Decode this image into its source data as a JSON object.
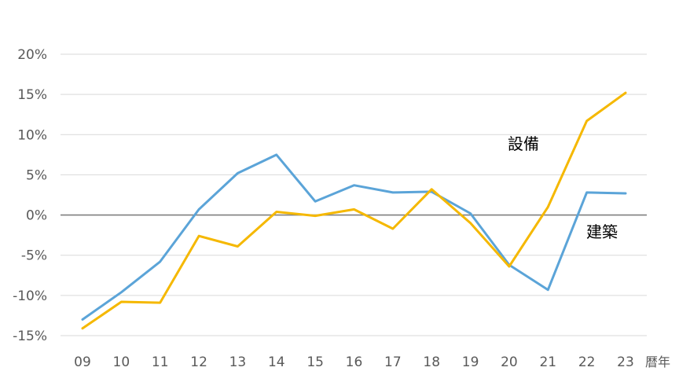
{
  "chart_data": {
    "type": "line",
    "title": "",
    "xlabel": "暦年",
    "ylabel": "",
    "categories": [
      "09",
      "10",
      "11",
      "12",
      "13",
      "14",
      "15",
      "16",
      "17",
      "18",
      "19",
      "20",
      "21",
      "22",
      "23"
    ],
    "y_ticks": [
      "20%",
      "15%",
      "10%",
      "5%",
      "0%",
      "-5%",
      "-10%",
      "-15%"
    ],
    "y_tick_values": [
      20,
      15,
      10,
      5,
      0,
      -5,
      -10,
      -15
    ],
    "ylim": [
      -15,
      20
    ],
    "grid": true,
    "series": [
      {
        "name": "建築",
        "color": "#5BA4D8",
        "values": [
          -13.0,
          -9.6,
          -5.8,
          0.7,
          5.2,
          7.5,
          1.7,
          3.7,
          2.8,
          2.9,
          0.2,
          -6.2,
          -9.3,
          2.8,
          2.7
        ]
      },
      {
        "name": "設備",
        "color": "#F5B800",
        "values": [
          -14.1,
          -10.8,
          -10.9,
          -2.6,
          -3.9,
          0.4,
          -0.1,
          0.7,
          -1.7,
          3.2,
          -1.0,
          -6.4,
          1.0,
          11.7,
          15.2
        ]
      }
    ],
    "zero_line_color": "#7F7F7F",
    "grid_color": "#D9D9D9"
  }
}
